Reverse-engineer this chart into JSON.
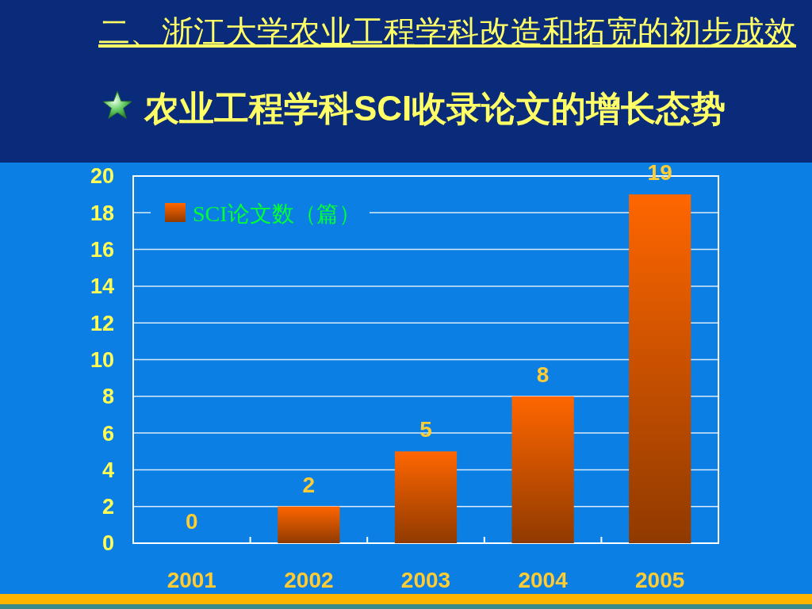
{
  "chart_data": {
    "type": "bar",
    "title": "二、浙江大学农业工程学科改造和拓宽的初步成效",
    "subtitle": "农业工程学科SCI收录论文的增长态势",
    "categories": [
      "2001",
      "2002",
      "2003",
      "2004",
      "2005"
    ],
    "series": [
      {
        "name": "SCI论文数（篇）",
        "color": "#ff6600",
        "values": [
          0,
          2,
          5,
          8,
          19
        ]
      }
    ],
    "ylim": [
      0,
      20
    ],
    "yticks": [
      0,
      2,
      4,
      6,
      8,
      10,
      12,
      14,
      16,
      18,
      20
    ],
    "grid": "y",
    "legend": "top left",
    "data_labels": true
  }
}
